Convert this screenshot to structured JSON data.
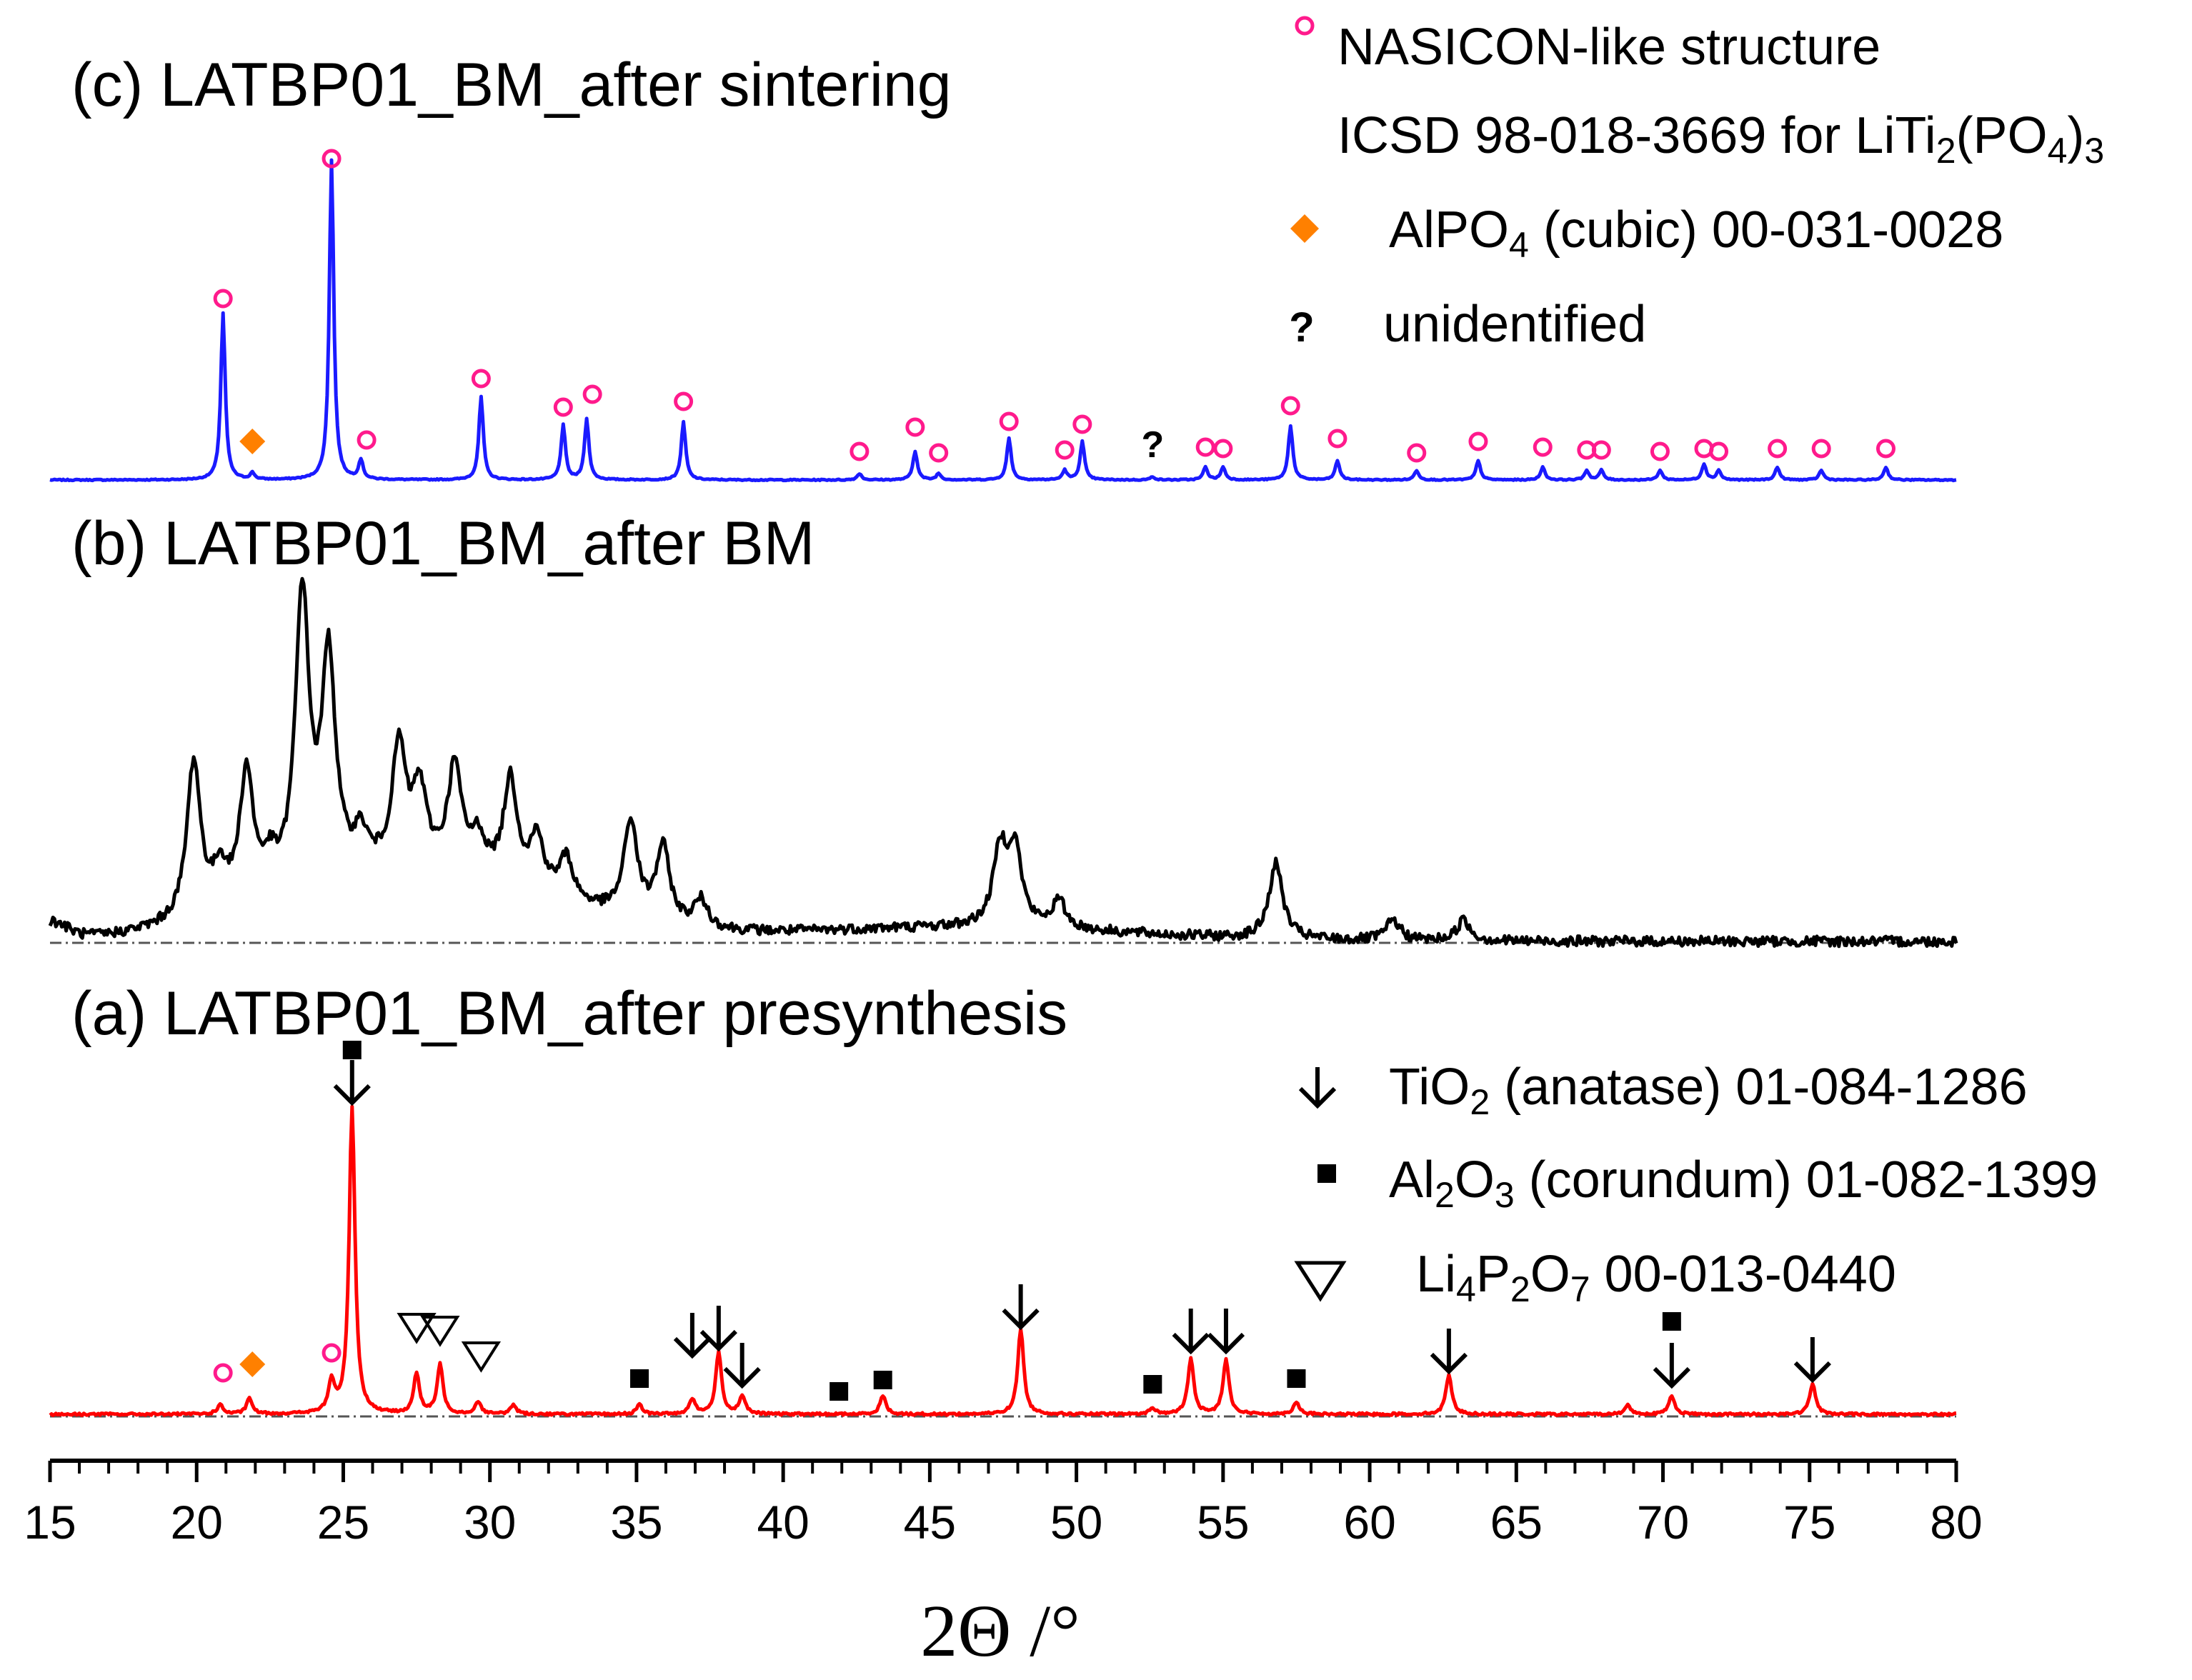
{
  "chart_data": {
    "type": "line",
    "xlabel": "2Θ /°",
    "xlim": [
      15,
      80
    ],
    "x_ticks": [
      15,
      20,
      25,
      30,
      35,
      40,
      45,
      50,
      55,
      60,
      65,
      70,
      75,
      80
    ],
    "y_axis": "intensity (arbitrary units, stacked, no ticks)",
    "panels": [
      {
        "id": "c",
        "title": "(c) LATBP01_BM_after sintering",
        "color": "#1a1aff",
        "peaks": [
          {
            "x": 20.9,
            "h": 0.52
          },
          {
            "x": 21.9,
            "h": 0.02
          },
          {
            "x": 24.6,
            "h": 1.0
          },
          {
            "x": 25.6,
            "h": 0.06
          },
          {
            "x": 29.7,
            "h": 0.26
          },
          {
            "x": 32.5,
            "h": 0.17
          },
          {
            "x": 33.3,
            "h": 0.19
          },
          {
            "x": 36.6,
            "h": 0.18
          },
          {
            "x": 42.6,
            "h": 0.02
          },
          {
            "x": 44.5,
            "h": 0.09
          },
          {
            "x": 45.3,
            "h": 0.02
          },
          {
            "x": 47.7,
            "h": 0.13
          },
          {
            "x": 49.6,
            "h": 0.03
          },
          {
            "x": 50.2,
            "h": 0.12
          },
          {
            "x": 52.6,
            "h": 0.01
          },
          {
            "x": 54.4,
            "h": 0.04
          },
          {
            "x": 55.0,
            "h": 0.04
          },
          {
            "x": 57.3,
            "h": 0.17
          },
          {
            "x": 58.9,
            "h": 0.06
          },
          {
            "x": 61.6,
            "h": 0.03
          },
          {
            "x": 63.7,
            "h": 0.06
          },
          {
            "x": 65.9,
            "h": 0.04
          },
          {
            "x": 67.4,
            "h": 0.03
          },
          {
            "x": 67.9,
            "h": 0.03
          },
          {
            "x": 69.9,
            "h": 0.03
          },
          {
            "x": 71.4,
            "h": 0.05
          },
          {
            "x": 71.9,
            "h": 0.03
          },
          {
            "x": 73.9,
            "h": 0.04
          },
          {
            "x": 75.4,
            "h": 0.03
          },
          {
            "x": 77.6,
            "h": 0.04
          }
        ]
      },
      {
        "id": "b",
        "title": "(b) LATBP01_BM_after BM",
        "color": "#000000",
        "peaks": [
          {
            "x": 19.9,
            "h": 0.46
          },
          {
            "x": 20.8,
            "h": 0.11
          },
          {
            "x": 21.7,
            "h": 0.38
          },
          {
            "x": 22.5,
            "h": 0.08
          },
          {
            "x": 23.6,
            "h": 0.85
          },
          {
            "x": 24.5,
            "h": 0.64
          },
          {
            "x": 25.6,
            "h": 0.1
          },
          {
            "x": 26.9,
            "h": 0.35
          },
          {
            "x": 27.6,
            "h": 0.22
          },
          {
            "x": 28.8,
            "h": 0.3
          },
          {
            "x": 29.6,
            "h": 0.1
          },
          {
            "x": 30.7,
            "h": 0.3
          },
          {
            "x": 31.6,
            "h": 0.15
          },
          {
            "x": 32.6,
            "h": 0.12
          },
          {
            "x": 34.8,
            "h": 0.28
          },
          {
            "x": 35.9,
            "h": 0.22
          },
          {
            "x": 37.2,
            "h": 0.08
          },
          {
            "x": 47.4,
            "h": 0.22
          },
          {
            "x": 47.9,
            "h": 0.22
          },
          {
            "x": 49.4,
            "h": 0.08
          },
          {
            "x": 56.8,
            "h": 0.22
          },
          {
            "x": 60.8,
            "h": 0.06
          },
          {
            "x": 63.2,
            "h": 0.06
          }
        ]
      },
      {
        "id": "a",
        "title": "(a) LATBP01_BM_after presynthesis",
        "color": "#ff0000",
        "peaks": [
          {
            "x": 20.8,
            "h": 0.03
          },
          {
            "x": 21.8,
            "h": 0.05
          },
          {
            "x": 24.6,
            "h": 0.1
          },
          {
            "x": 25.3,
            "h": 1.0
          },
          {
            "x": 27.5,
            "h": 0.13
          },
          {
            "x": 28.3,
            "h": 0.16
          },
          {
            "x": 29.6,
            "h": 0.04
          },
          {
            "x": 30.8,
            "h": 0.03
          },
          {
            "x": 35.1,
            "h": 0.03
          },
          {
            "x": 36.9,
            "h": 0.05
          },
          {
            "x": 37.8,
            "h": 0.2
          },
          {
            "x": 38.6,
            "h": 0.06
          },
          {
            "x": 43.4,
            "h": 0.06
          },
          {
            "x": 48.1,
            "h": 0.28
          },
          {
            "x": 52.6,
            "h": 0.02
          },
          {
            "x": 53.9,
            "h": 0.18
          },
          {
            "x": 55.1,
            "h": 0.18
          },
          {
            "x": 57.5,
            "h": 0.04
          },
          {
            "x": 62.7,
            "h": 0.13
          },
          {
            "x": 68.8,
            "h": 0.03
          },
          {
            "x": 70.3,
            "h": 0.06
          },
          {
            "x": 75.1,
            "h": 0.1
          }
        ]
      }
    ],
    "markers": {
      "nasicon": [
        20.9,
        24.6,
        25.6,
        29.7,
        32.5,
        33.3,
        36.6,
        42.6,
        44.5,
        45.3,
        47.7,
        49.6,
        50.2,
        54.4,
        55.0,
        57.3,
        58.9,
        61.6,
        63.7,
        65.9,
        67.4,
        67.9,
        69.9,
        71.4,
        71.9,
        73.9,
        75.4,
        77.6,
        20.9,
        24.6
      ],
      "alpo4": [
        21.9,
        21.9
      ],
      "unidentified": [
        52.6
      ],
      "anatase": [
        25.3,
        36.9,
        37.8,
        38.6,
        48.1,
        53.9,
        55.1,
        62.7,
        70.3,
        75.1
      ],
      "corundum": [
        25.3,
        35.1,
        41.9,
        43.4,
        52.6,
        57.5,
        70.3
      ],
      "li4p2o7": [
        27.5,
        28.3,
        29.7
      ]
    },
    "legend": {
      "nasicon_line1": "NASICON-like structure",
      "nasicon_line2": [
        "ICSD 98-018-3669 for LiTi",
        "2",
        "(PO",
        "4",
        ")",
        "3"
      ],
      "alpo4": [
        "AlPO",
        "4",
        " (cubic) 00-031-0028"
      ],
      "unidentified_symbol": "?",
      "unidentified": "unidentified",
      "anatase": [
        "TiO",
        "2",
        " (anatase) 01-084-1286"
      ],
      "corundum": [
        "Al",
        "2",
        "O",
        "3",
        " (corundum)  01-082-1399"
      ],
      "li4p2o7": [
        "Li",
        "4",
        "P",
        "2",
        "O",
        "7",
        " 00-013-0440"
      ]
    },
    "colors": {
      "nasicon": "#ff1a8c",
      "alpo4": "#ff8000",
      "axis": "#000000",
      "baseline": "#555555"
    }
  }
}
